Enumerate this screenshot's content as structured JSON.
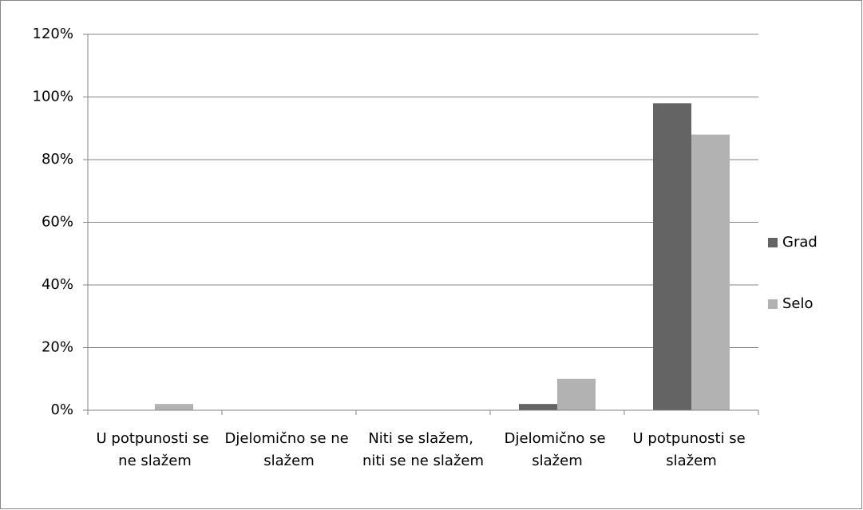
{
  "chart_data": {
    "type": "bar",
    "categories": [
      "U potpunosti se ne slažem",
      "Djelomično se ne slažem",
      "Niti se slažem, niti se ne slažem",
      "Djelomično se slažem",
      "U potpunosti se slažem"
    ],
    "series": [
      {
        "name": "Grad",
        "color": "#646464",
        "values": [
          0,
          0,
          0,
          2,
          98
        ]
      },
      {
        "name": "Selo",
        "color": "#b2b2b2",
        "values": [
          2,
          0,
          0,
          10,
          88
        ]
      }
    ],
    "ylim": [
      0,
      120
    ],
    "yticks": [
      {
        "value": 0,
        "label": "0%"
      },
      {
        "value": 20,
        "label": "20%"
      },
      {
        "value": 40,
        "label": "40%"
      },
      {
        "value": 60,
        "label": "60%"
      },
      {
        "value": 80,
        "label": "80%"
      },
      {
        "value": 100,
        "label": "100%"
      },
      {
        "value": 120,
        "label": "120%"
      }
    ],
    "grid": true,
    "legend": "right"
  }
}
